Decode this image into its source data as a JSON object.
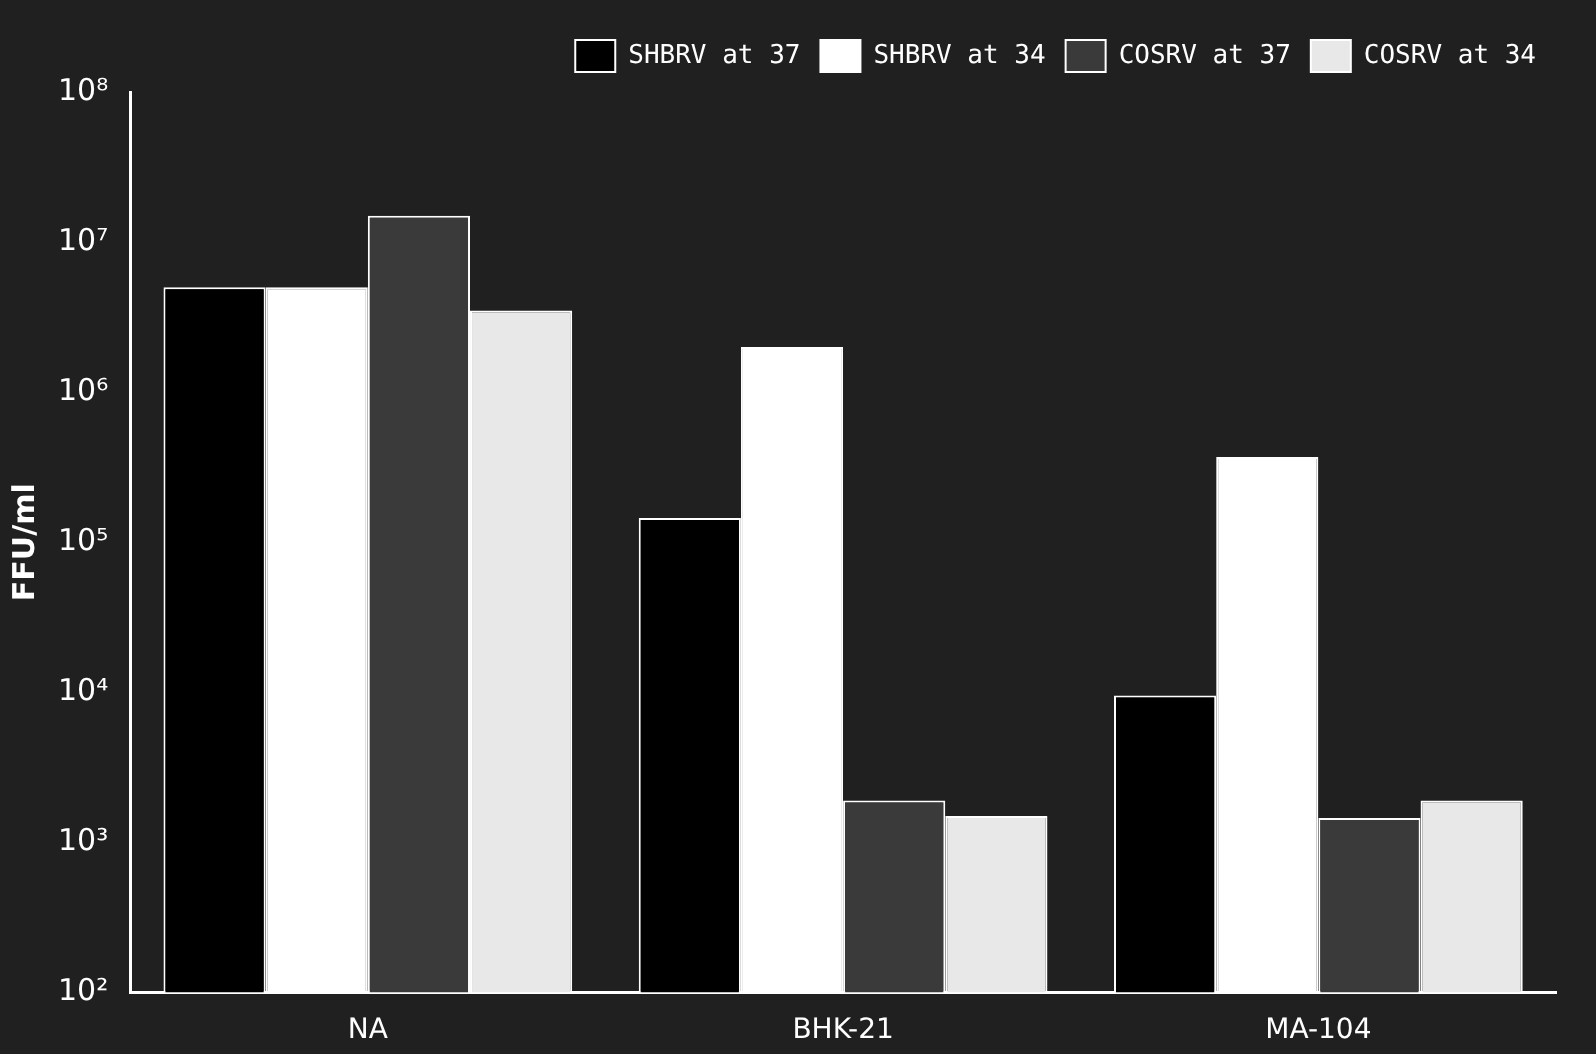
{
  "chart_data": {
    "type": "bar",
    "ylabel": "FFU/ml",
    "categories": [
      "NA",
      "BHK-21",
      "MA-104"
    ],
    "series": [
      {
        "name": "SHBRV at 37",
        "color": "#000000",
        "values": [
          5000000,
          145000,
          9500
        ]
      },
      {
        "name": "SHBRV at 34",
        "color": "#ffffff",
        "values": [
          5000000,
          2000000,
          370000
        ]
      },
      {
        "name": "COSRV at 37",
        "color": "#3a3a3a",
        "values": [
          15000000,
          1900,
          1450
        ]
      },
      {
        "name": "COSRV at 34",
        "color": "#e8e8e8",
        "values": [
          3500000,
          1500,
          1900
        ]
      }
    ],
    "log": "y",
    "ylim": [
      100,
      100000000
    ],
    "yticks": [
      {
        "value": 100,
        "label": "10²"
      },
      {
        "value": 1000,
        "label": "10³"
      },
      {
        "value": 10000,
        "label": "10⁴"
      },
      {
        "value": 100000,
        "label": "10⁵"
      },
      {
        "value": 1000000,
        "label": "10⁶"
      },
      {
        "value": 10000000,
        "label": "10⁷"
      },
      {
        "value": 100000000,
        "label": "10⁸"
      }
    ],
    "legend": "top right",
    "grid": false
  }
}
